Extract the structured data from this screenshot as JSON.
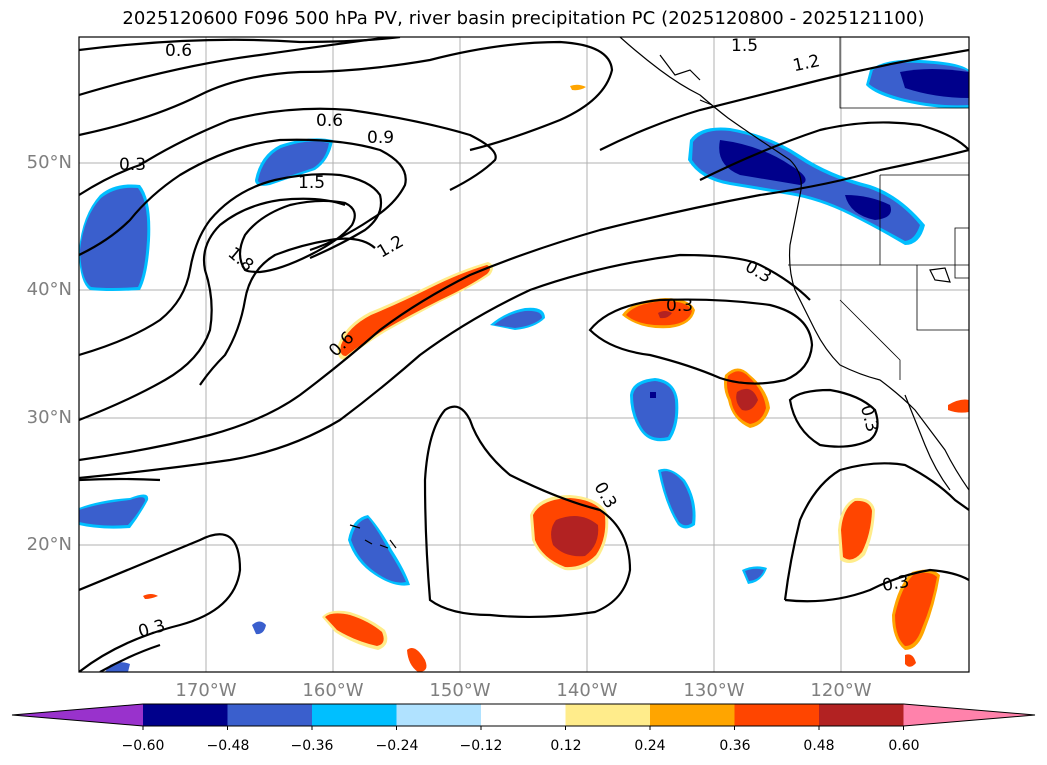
{
  "title": "2025120600 F096 500 hPa PV, river basin precipitation PC (2025120800 - 2025121100)",
  "lat_labels": [
    "50°N",
    "40°N",
    "30°N",
    "20°N"
  ],
  "lon_labels": [
    "170°W",
    "160°W",
    "150°W",
    "140°W",
    "130°W",
    "120°W"
  ],
  "contour_labels": [
    "0.6",
    "0.6",
    "0.9",
    "1.5",
    "1.2",
    "1.5",
    "1.2",
    "1.8",
    "0.3",
    "0.3",
    "0.6",
    "0.3",
    "0.3",
    "0.3",
    "0.3",
    "0.3"
  ],
  "colorbar": {
    "ticks": [
      "−0.60",
      "−0.48",
      "−0.36",
      "−0.24",
      "−0.12",
      "0.12",
      "0.24",
      "0.36",
      "0.48",
      "0.60"
    ],
    "colors": [
      "#9932cc",
      "#00008b",
      "#3a5fcd",
      "#00bfff",
      "#b0e2ff",
      "#ffffff",
      "#ffec8b",
      "#ffa500",
      "#ff4500",
      "#b22222",
      "#ff82ab"
    ]
  },
  "colors": {
    "neg_strong": "#00008b",
    "neg_mid": "#3a5fcd",
    "neg_weak": "#00bfff",
    "pos_weak": "#ffec8b",
    "pos_mid": "#ff4500",
    "pos_strong": "#b22222"
  }
}
